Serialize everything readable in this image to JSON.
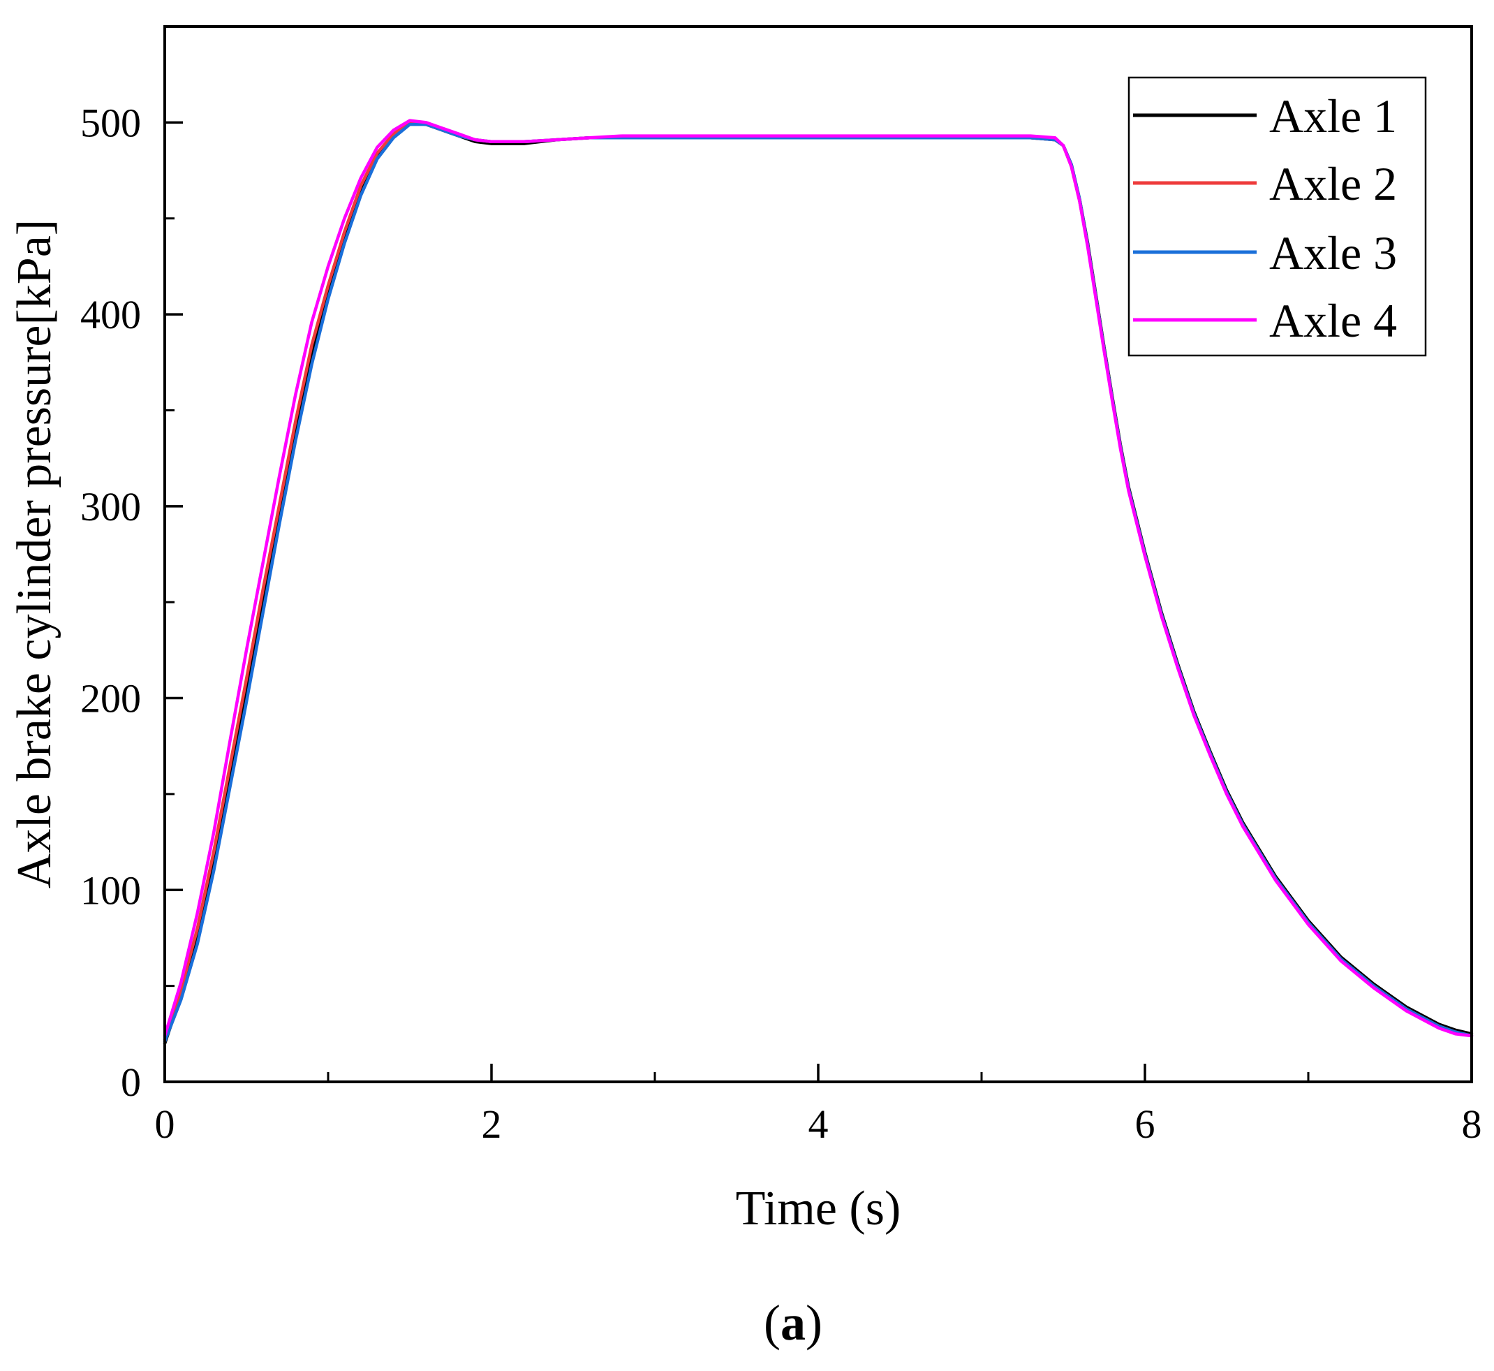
{
  "caption": {
    "open": "(",
    "letter": "a",
    "close": ")"
  },
  "chart_data": {
    "type": "line",
    "title": "",
    "xlabel": "Time (s)",
    "ylabel": "Axle brake cylinder pressure[kPa]",
    "xlim": [
      0,
      8
    ],
    "ylim": [
      0,
      550
    ],
    "x_ticks": [
      0,
      2,
      4,
      6,
      8
    ],
    "x_tick_labels": [
      "0",
      "2",
      "4",
      "6",
      "8"
    ],
    "x_minor_ticks": [
      1,
      3,
      5,
      7
    ],
    "y_ticks": [
      0,
      100,
      200,
      300,
      400,
      500
    ],
    "y_tick_labels": [
      "0",
      "100",
      "200",
      "300",
      "400",
      "500"
    ],
    "y_minor_ticks": [
      50,
      150,
      250,
      350,
      450
    ],
    "grid": false,
    "legend_position": "top-right",
    "series": [
      {
        "name": "Axle 1",
        "color": "#000000",
        "x": [
          0,
          0.1,
          0.2,
          0.3,
          0.4,
          0.5,
          0.6,
          0.7,
          0.8,
          0.9,
          1.0,
          1.1,
          1.2,
          1.3,
          1.4,
          1.5,
          1.6,
          1.7,
          1.8,
          1.9,
          2.0,
          2.2,
          2.4,
          2.6,
          2.8,
          3.0,
          3.5,
          4.0,
          4.5,
          5.0,
          5.3,
          5.45,
          5.5,
          5.55,
          5.6,
          5.65,
          5.7,
          5.75,
          5.8,
          5.85,
          5.9,
          6.0,
          6.1,
          6.2,
          6.3,
          6.4,
          6.5,
          6.6,
          6.8,
          7.0,
          7.2,
          7.4,
          7.6,
          7.8,
          7.9,
          8.0
        ],
        "y": [
          20,
          45,
          75,
          115,
          160,
          205,
          250,
          295,
          340,
          380,
          412,
          440,
          465,
          483,
          493,
          500,
          499,
          496,
          493,
          490,
          489,
          489,
          491,
          492,
          492,
          492,
          492,
          492,
          492,
          492,
          492,
          491,
          488,
          478,
          460,
          437,
          410,
          383,
          357,
          332,
          310,
          276,
          245,
          218,
          193,
          172,
          152,
          135,
          107,
          84,
          65,
          51,
          39,
          30,
          27,
          25
        ]
      },
      {
        "name": "Axle 2",
        "color": "#ee3b3b",
        "x": [
          0,
          0.1,
          0.2,
          0.3,
          0.4,
          0.5,
          0.6,
          0.7,
          0.8,
          0.9,
          1.0,
          1.1,
          1.2,
          1.3,
          1.4,
          1.5,
          1.6,
          1.7,
          1.8,
          1.9,
          2.0,
          2.2,
          2.4,
          2.6,
          2.8,
          3.0,
          3.5,
          4.0,
          4.5,
          5.0,
          5.3,
          5.45,
          5.5,
          5.55,
          5.6,
          5.65,
          5.7,
          5.75,
          5.8,
          5.85,
          5.9,
          6.0,
          6.1,
          6.2,
          6.3,
          6.4,
          6.5,
          6.6,
          6.8,
          7.0,
          7.2,
          7.4,
          7.6,
          7.8,
          7.9,
          8.0
        ],
        "y": [
          22,
          48,
          80,
          120,
          165,
          210,
          256,
          300,
          344,
          384,
          415,
          443,
          467,
          484,
          494,
          500,
          499,
          496,
          493,
          491,
          490,
          490,
          491,
          492,
          492,
          492,
          492,
          492,
          492,
          492,
          492,
          491,
          488,
          477,
          459,
          436,
          409,
          382,
          356,
          331,
          309,
          275,
          244,
          217,
          192,
          171,
          151,
          134,
          106,
          83,
          64,
          50,
          38,
          29,
          26,
          24
        ]
      },
      {
        "name": "Axle 3",
        "color": "#1a6fd9",
        "x": [
          0,
          0.1,
          0.2,
          0.3,
          0.4,
          0.5,
          0.6,
          0.7,
          0.8,
          0.9,
          1.0,
          1.1,
          1.2,
          1.3,
          1.4,
          1.5,
          1.6,
          1.7,
          1.8,
          1.9,
          2.0,
          2.2,
          2.4,
          2.6,
          2.8,
          3.0,
          3.5,
          4.0,
          4.5,
          5.0,
          5.3,
          5.45,
          5.5,
          5.55,
          5.6,
          5.65,
          5.7,
          5.75,
          5.8,
          5.85,
          5.9,
          6.0,
          6.1,
          6.2,
          6.3,
          6.4,
          6.5,
          6.6,
          6.8,
          7.0,
          7.2,
          7.4,
          7.6,
          7.8,
          7.9,
          8.0
        ],
        "y": [
          21,
          43,
          72,
          110,
          154,
          198,
          244,
          290,
          334,
          374,
          408,
          437,
          462,
          481,
          492,
          499,
          499,
          496,
          493,
          491,
          490,
          490,
          491,
          492,
          492,
          492,
          492,
          492,
          492,
          492,
          492,
          491,
          488,
          478,
          460,
          436,
          409,
          382,
          356,
          331,
          309,
          275,
          244,
          217,
          192,
          171,
          151,
          134,
          106,
          83,
          64,
          50,
          38,
          29,
          26,
          24
        ]
      },
      {
        "name": "Axle 4",
        "color": "#ff00ff",
        "x": [
          0,
          0.1,
          0.2,
          0.3,
          0.4,
          0.5,
          0.6,
          0.7,
          0.8,
          0.9,
          1.0,
          1.1,
          1.2,
          1.3,
          1.4,
          1.5,
          1.6,
          1.7,
          1.8,
          1.9,
          2.0,
          2.2,
          2.4,
          2.6,
          2.8,
          3.0,
          3.5,
          4.0,
          4.5,
          5.0,
          5.3,
          5.45,
          5.5,
          5.55,
          5.6,
          5.65,
          5.7,
          5.75,
          5.8,
          5.85,
          5.9,
          6.0,
          6.1,
          6.2,
          6.3,
          6.4,
          6.5,
          6.6,
          6.8,
          7.0,
          7.2,
          7.4,
          7.6,
          7.8,
          7.9,
          8.0
        ],
        "y": [
          24,
          52,
          88,
          130,
          178,
          225,
          270,
          315,
          358,
          396,
          425,
          450,
          471,
          487,
          496,
          501,
          500,
          497,
          494,
          491,
          490,
          490,
          491,
          492,
          493,
          493,
          493,
          493,
          493,
          493,
          493,
          492,
          488,
          477,
          459,
          435,
          408,
          381,
          355,
          330,
          308,
          274,
          243,
          216,
          191,
          170,
          150,
          133,
          105,
          82,
          63,
          49,
          37,
          28,
          25,
          24
        ]
      }
    ]
  }
}
